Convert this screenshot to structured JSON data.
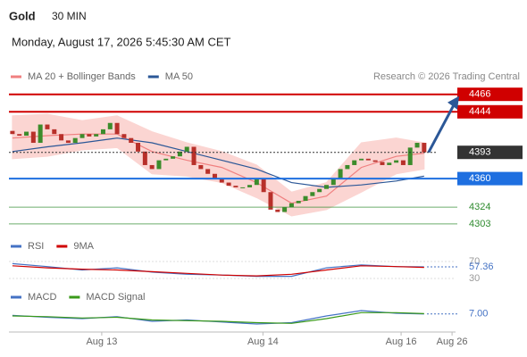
{
  "header": {
    "title": "Gold",
    "interval": "30 MIN",
    "datetime": "Monday, August 17, 2026 5:45:30 AM CET",
    "source": "Research © 2026 Trading Central"
  },
  "chart_data": [
    {
      "type": "candlestick",
      "x": [
        0,
        1,
        2,
        3,
        4,
        5,
        6,
        7,
        8,
        9,
        10,
        11,
        12,
        13,
        14,
        15,
        16,
        17,
        18,
        19,
        20,
        21,
        22,
        23,
        24,
        25,
        26,
        27,
        28,
        29,
        30,
        31,
        32,
        33,
        34,
        35,
        36,
        37,
        38,
        39,
        40,
        41,
        42,
        43,
        44,
        45,
        46,
        47,
        48,
        49,
        50,
        51,
        52,
        53,
        54,
        55,
        56,
        57,
        58,
        59
      ],
      "open": [
        4420,
        4416,
        4414,
        4419,
        4405,
        4428,
        4422,
        4416,
        4408,
        4405,
        4411,
        4416,
        4413,
        4416,
        4422,
        4430,
        4416,
        4411,
        4405,
        4394,
        4377,
        4372,
        4383,
        4385,
        4388,
        4394,
        4400,
        4377,
        4372,
        4366,
        4360,
        4355,
        4351,
        4349,
        4349,
        4352,
        4360,
        4343,
        4321,
        4318,
        4324,
        4329,
        4332,
        4338,
        4343,
        4347,
        4352,
        4360,
        4372,
        4377,
        4383,
        4385,
        4383,
        4381,
        4377,
        4380,
        4383,
        4377,
        4399,
        4405
      ],
      "close": [
        4416,
        4414,
        4419,
        4405,
        4428,
        4422,
        4416,
        4408,
        4405,
        4411,
        4416,
        4413,
        4416,
        4422,
        4430,
        4416,
        4411,
        4405,
        4394,
        4377,
        4372,
        4383,
        4385,
        4388,
        4394,
        4400,
        4377,
        4372,
        4366,
        4360,
        4355,
        4351,
        4349,
        4349,
        4352,
        4360,
        4343,
        4321,
        4318,
        4324,
        4329,
        4332,
        4338,
        4343,
        4347,
        4352,
        4360,
        4372,
        4377,
        4383,
        4385,
        4383,
        4381,
        4377,
        4380,
        4383,
        4377,
        4399,
        4405,
        4393
      ],
      "up_color": "#3c8c2c",
      "down_color": "#b8302a",
      "series": [
        {
          "name": "MA 20 + Bollinger Bands",
          "color": "#f08080",
          "band_color": "#fbd5d2",
          "x": [
            0,
            5,
            10,
            15,
            20,
            25,
            30,
            35,
            40,
            45,
            50,
            55,
            59
          ],
          "values": [
            4411,
            4414,
            4416,
            4416,
            4394,
            4383,
            4374,
            4355,
            4329,
            4338,
            4374,
            4388,
            4392
          ],
          "upper": [
            4439,
            4441,
            4433,
            4439,
            4419,
            4405,
            4394,
            4377,
            4343,
            4355,
            4405,
            4411,
            4405
          ],
          "lower": [
            4385,
            4388,
            4396,
            4399,
            4366,
            4363,
            4355,
            4336,
            4313,
            4321,
            4343,
            4366,
            4372
          ]
        },
        {
          "name": "MA 50",
          "color": "#2b5797",
          "x": [
            0,
            5,
            10,
            15,
            20,
            25,
            30,
            35,
            40,
            45,
            50,
            55,
            59
          ],
          "values": [
            4394,
            4400,
            4405,
            4411,
            4405,
            4394,
            4383,
            4372,
            4355,
            4349,
            4352,
            4357,
            4363
          ]
        }
      ],
      "levels": [
        {
          "value": 4466,
          "color": "#d00000",
          "style": "box"
        },
        {
          "value": 4444,
          "color": "#d00000",
          "style": "box"
        },
        {
          "value": 4393,
          "color": "#333333",
          "style": "box"
        },
        {
          "value": 4360,
          "color": "#1e6fe0",
          "style": "box"
        },
        {
          "value": 4324,
          "color": "#2e8b2e",
          "style": "text"
        },
        {
          "value": 4303,
          "color": "#2e8b2e",
          "style": "text"
        }
      ],
      "xlim": [
        -0.5,
        63.5
      ],
      "xticks": [
        {
          "value": 12.8,
          "label": "Aug 13"
        },
        {
          "value": 35.9,
          "label": "Aug 14"
        },
        {
          "value": 55.7,
          "label": "Aug 16"
        },
        {
          "value": 63,
          "label": "Aug 26"
        }
      ],
      "ylim": [
        4295,
        4478
      ]
    },
    {
      "type": "line",
      "series": [
        {
          "name": "RSI",
          "color": "#4472c4",
          "x": [
            0,
            5,
            10,
            15,
            20,
            25,
            30,
            35,
            40,
            45,
            50,
            55,
            59
          ],
          "values": [
            65,
            58,
            50,
            55,
            45,
            40,
            38,
            35,
            35,
            55,
            62,
            58,
            57.36
          ]
        },
        {
          "name": "9MA",
          "color": "#d00000",
          "x": [
            0,
            5,
            10,
            15,
            20,
            25,
            30,
            35,
            40,
            45,
            50,
            55,
            59
          ],
          "values": [
            60,
            55,
            52,
            50,
            46,
            42,
            38,
            36,
            40,
            50,
            60,
            58,
            56
          ]
        }
      ],
      "current_value": 57.36,
      "xlim": [
        -0.5,
        63.5
      ],
      "ylim": [
        0,
        100
      ],
      "yticks": [
        70,
        30
      ]
    },
    {
      "type": "line",
      "series": [
        {
          "name": "MACD",
          "color": "#4472c4",
          "x": [
            0,
            5,
            10,
            15,
            20,
            25,
            30,
            35,
            40,
            45,
            50,
            55,
            59
          ],
          "values": [
            5,
            2,
            0,
            3,
            -4,
            -2,
            -5,
            -8,
            -6,
            4,
            12,
            8,
            7
          ]
        },
        {
          "name": "MACD Signal",
          "color": "#3a9a1a",
          "x": [
            0,
            5,
            10,
            15,
            20,
            25,
            30,
            35,
            40,
            45,
            50,
            55,
            59
          ],
          "values": [
            4,
            3,
            1,
            2,
            -2,
            -3,
            -4,
            -6,
            -7,
            0,
            9,
            9,
            7.5
          ]
        }
      ],
      "current_value": {
        "value": 7,
        "label": "7.00"
      },
      "xlim": [
        -0.5,
        63.5
      ],
      "ylim": [
        -20,
        20
      ]
    }
  ]
}
